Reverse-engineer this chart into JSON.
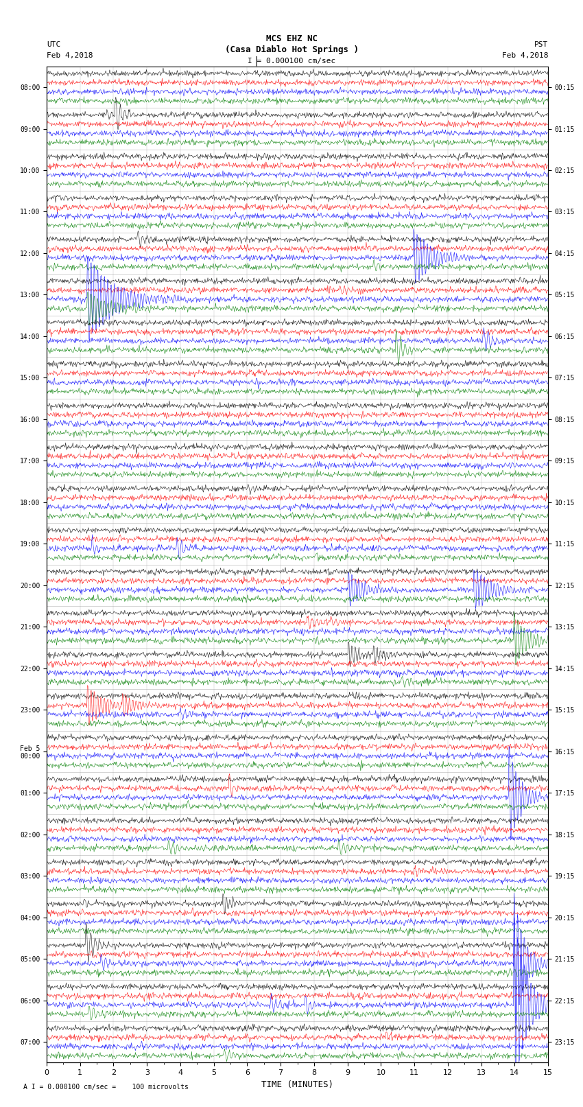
{
  "title_line1": "MCS EHZ NC",
  "title_line2": "(Casa Diablo Hot Springs )",
  "scale_label": "I = 0.000100 cm/sec",
  "bottom_label": "A I = 0.000100 cm/sec =    100 microvolts",
  "utc_label": "UTC",
  "pst_label": "PST",
  "date_left": "Feb 4,2018",
  "date_right": "Feb 4,2018",
  "xlabel": "TIME (MINUTES)",
  "left_times": [
    "08:00",
    "09:00",
    "10:00",
    "11:00",
    "12:00",
    "13:00",
    "14:00",
    "15:00",
    "16:00",
    "17:00",
    "18:00",
    "19:00",
    "20:00",
    "21:00",
    "22:00",
    "23:00",
    "Feb 5\n00:00",
    "01:00",
    "02:00",
    "03:00",
    "04:00",
    "05:00",
    "06:00",
    "07:00"
  ],
  "right_times": [
    "00:15",
    "01:15",
    "02:15",
    "03:15",
    "04:15",
    "05:15",
    "06:15",
    "07:15",
    "08:15",
    "09:15",
    "10:15",
    "11:15",
    "12:15",
    "13:15",
    "14:15",
    "15:15",
    "16:15",
    "17:15",
    "18:15",
    "19:15",
    "20:15",
    "21:15",
    "22:15",
    "23:15"
  ],
  "n_rows": 24,
  "n_traces_per_row": 4,
  "trace_colors": [
    "black",
    "red",
    "blue",
    "green"
  ],
  "minutes_per_row": 15,
  "bg_color": "white",
  "grid_color": "#cccccc",
  "fig_width": 8.5,
  "fig_height": 16.13
}
